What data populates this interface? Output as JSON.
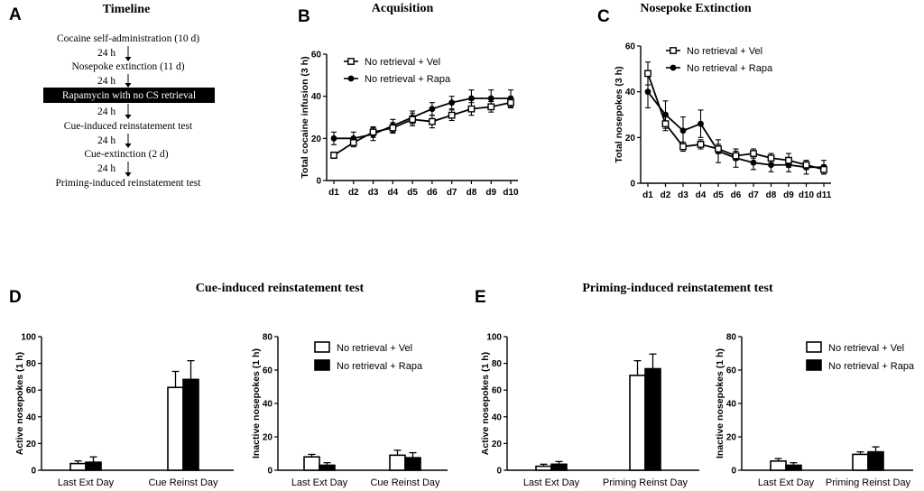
{
  "panels": {
    "A": {
      "letter": "A",
      "title": "Timeline",
      "steps": [
        "Cocaine self-administration (10 d)",
        "Nosepoke extinction (11 d)",
        "Rapamycin with no CS retrieval",
        "Cue-induced reinstatement test",
        "Cue-extinction (2 d)",
        "Priming-induced reinstatement test"
      ],
      "intervals": [
        "24 h",
        "24 h",
        "24 h",
        "24 h",
        "24 h"
      ]
    },
    "B": {
      "letter": "B"
    },
    "C": {
      "letter": "C"
    },
    "D": {
      "letter": "D",
      "title": "Cue-induced reinstatement test"
    },
    "E": {
      "letter": "E",
      "title": "Priming-induced reinstatement test"
    }
  },
  "legend": {
    "vel": "No retrieval + Vel",
    "rapa": "No retrieval + Rapa",
    "vel_color": "#ffffff",
    "rapa_color": "#000000"
  },
  "chart_data": [
    {
      "id": "B",
      "type": "line",
      "title": "Acquisition",
      "xlabel": "",
      "ylabel": "Total cocaine infusion (3 h)",
      "categories": [
        "d1",
        "d2",
        "d3",
        "d4",
        "d5",
        "d6",
        "d7",
        "d8",
        "d9",
        "d10"
      ],
      "ylim": [
        0,
        60
      ],
      "yticks": [
        0,
        20,
        40,
        60
      ],
      "series": [
        {
          "name": "No retrieval + Vel",
          "marker": "open-square",
          "values": [
            12,
            18,
            23,
            25,
            29,
            28,
            31,
            34,
            35,
            37
          ],
          "errors": [
            1.5,
            2,
            2.5,
            2.5,
            3,
            3,
            2.5,
            3,
            2.5,
            2.5
          ]
        },
        {
          "name": "No retrieval + Rapa",
          "marker": "filled-circle",
          "values": [
            20,
            20,
            22,
            26,
            30,
            34,
            37,
            39,
            39,
            39
          ],
          "errors": [
            3,
            3,
            3,
            3,
            3,
            3,
            3,
            4,
            4,
            4
          ]
        }
      ]
    },
    {
      "id": "C",
      "type": "line",
      "title": "Nosepoke Extinction",
      "xlabel": "",
      "ylabel": "Total nosepokes (3 h)",
      "categories": [
        "d1",
        "d2",
        "d3",
        "d4",
        "d5",
        "d6",
        "d7",
        "d8",
        "d9",
        "d10",
        "d11"
      ],
      "ylim": [
        0,
        60
      ],
      "yticks": [
        0,
        20,
        40,
        60
      ],
      "series": [
        {
          "name": "No retrieval + Vel",
          "marker": "open-square",
          "values": [
            48,
            26,
            16,
            17,
            15,
            12,
            13,
            11,
            10,
            8,
            6
          ],
          "errors": [
            5,
            3,
            2,
            2,
            2,
            2,
            2,
            2,
            3,
            2,
            2
          ]
        },
        {
          "name": "No retrieval + Rapa",
          "marker": "filled-circle",
          "values": [
            40,
            30,
            23,
            26,
            14,
            11,
            9,
            8,
            8,
            7,
            7
          ],
          "errors": [
            7,
            6,
            6,
            6,
            5,
            4,
            3,
            3,
            3,
            3,
            3
          ]
        }
      ]
    },
    {
      "id": "D-active",
      "type": "bar",
      "title": "",
      "xlabel": "",
      "ylabel": "Active nosepokes (1 h)",
      "categories": [
        "Last Ext Day",
        "Cue Reinst Day"
      ],
      "ylim": [
        0,
        100
      ],
      "yticks": [
        0,
        20,
        40,
        60,
        80,
        100
      ],
      "series": [
        {
          "name": "No retrieval + Vel",
          "values": [
            5,
            62
          ],
          "errors": [
            2,
            12
          ]
        },
        {
          "name": "No retrieval + Rapa",
          "values": [
            6,
            68
          ],
          "errors": [
            4,
            14
          ]
        }
      ]
    },
    {
      "id": "D-inactive",
      "type": "bar",
      "title": "",
      "xlabel": "",
      "ylabel": "Inactive nosepokes (1 h)",
      "categories": [
        "Last Ext Day",
        "Cue Reinst Day"
      ],
      "ylim": [
        0,
        80
      ],
      "yticks": [
        0,
        20,
        40,
        60,
        80
      ],
      "series": [
        {
          "name": "No retrieval + Vel",
          "values": [
            8,
            9
          ],
          "errors": [
            1.5,
            3
          ]
        },
        {
          "name": "No retrieval + Rapa",
          "values": [
            3,
            7.5
          ],
          "errors": [
            1.5,
            3
          ]
        }
      ]
    },
    {
      "id": "E-active",
      "type": "bar",
      "title": "",
      "xlabel": "",
      "ylabel": "Active nosepokes (1 h)",
      "categories": [
        "Last Ext Day",
        "Priming Reinst Day"
      ],
      "ylim": [
        0,
        100
      ],
      "yticks": [
        0,
        20,
        40,
        60,
        80,
        100
      ],
      "series": [
        {
          "name": "No retrieval + Vel",
          "values": [
            3,
            71
          ],
          "errors": [
            1.5,
            11
          ]
        },
        {
          "name": "No retrieval + Rapa",
          "values": [
            4.5,
            76
          ],
          "errors": [
            2,
            11
          ]
        }
      ]
    },
    {
      "id": "E-inactive",
      "type": "bar",
      "title": "",
      "xlabel": "",
      "ylabel": "Inactive nosepokes (1 h)",
      "categories": [
        "Last Ext Day",
        "Priming Reinst Day"
      ],
      "ylim": [
        0,
        80
      ],
      "yticks": [
        0,
        20,
        40,
        60,
        80
      ],
      "series": [
        {
          "name": "No retrieval + Vel",
          "values": [
            5.5,
            9.5
          ],
          "errors": [
            1.5,
            1.5
          ]
        },
        {
          "name": "No retrieval + Rapa",
          "values": [
            3,
            11
          ],
          "errors": [
            1.5,
            3
          ]
        }
      ]
    }
  ]
}
